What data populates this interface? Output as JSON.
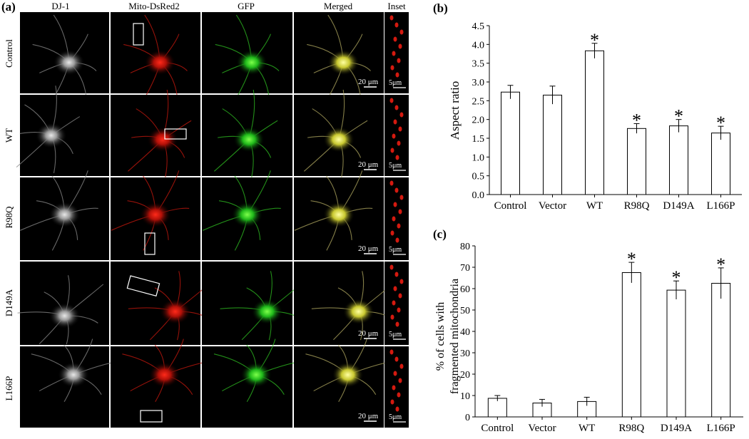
{
  "panel_a": {
    "label": "(a)",
    "columns": [
      "DJ-1",
      "Mito-DsRed2",
      "GFP",
      "Merged",
      "Inset"
    ],
    "rows": [
      "Control",
      "WT",
      "R98Q",
      "D149A",
      "L166P"
    ],
    "scale_bar_main": "20 μm",
    "scale_bar_inset": "5μm"
  },
  "chart_data": [
    {
      "panel": "(b)",
      "type": "bar",
      "categories": [
        "Control",
        "Vector",
        "WT",
        "R98Q",
        "D149A",
        "L166P"
      ],
      "values": [
        2.73,
        2.65,
        3.83,
        1.76,
        1.83,
        1.64
      ],
      "errors": [
        0.18,
        0.24,
        0.2,
        0.13,
        0.17,
        0.18
      ],
      "significant": [
        false,
        false,
        true,
        true,
        true,
        true
      ],
      "significance_marker": "*",
      "title": "",
      "xlabel": "",
      "ylabel": "Aspect ratio",
      "ylim": [
        0,
        4.5
      ],
      "yticks": [
        "0.0",
        "0.5",
        "1.0",
        "1.5",
        "2.0",
        "2.5",
        "3.0",
        "3.5",
        "4.0",
        "4.5"
      ]
    },
    {
      "panel": "(c)",
      "type": "bar",
      "categories": [
        "Control",
        "Vector",
        "WT",
        "R98Q",
        "D149A",
        "L166P"
      ],
      "values": [
        8.7,
        6.5,
        7.2,
        67.5,
        59.3,
        62.5
      ],
      "errors": [
        1.3,
        1.7,
        2.0,
        4.8,
        4.3,
        7.2
      ],
      "significant": [
        false,
        false,
        false,
        true,
        true,
        true
      ],
      "significance_marker": "*",
      "title": "",
      "xlabel": "",
      "ylabel": [
        "% of cells with",
        "fragmented mitochondria"
      ],
      "ylim": [
        0,
        80
      ],
      "yticks": [
        "0",
        "10",
        "20",
        "30",
        "40",
        "50",
        "60",
        "70",
        "80"
      ]
    }
  ]
}
